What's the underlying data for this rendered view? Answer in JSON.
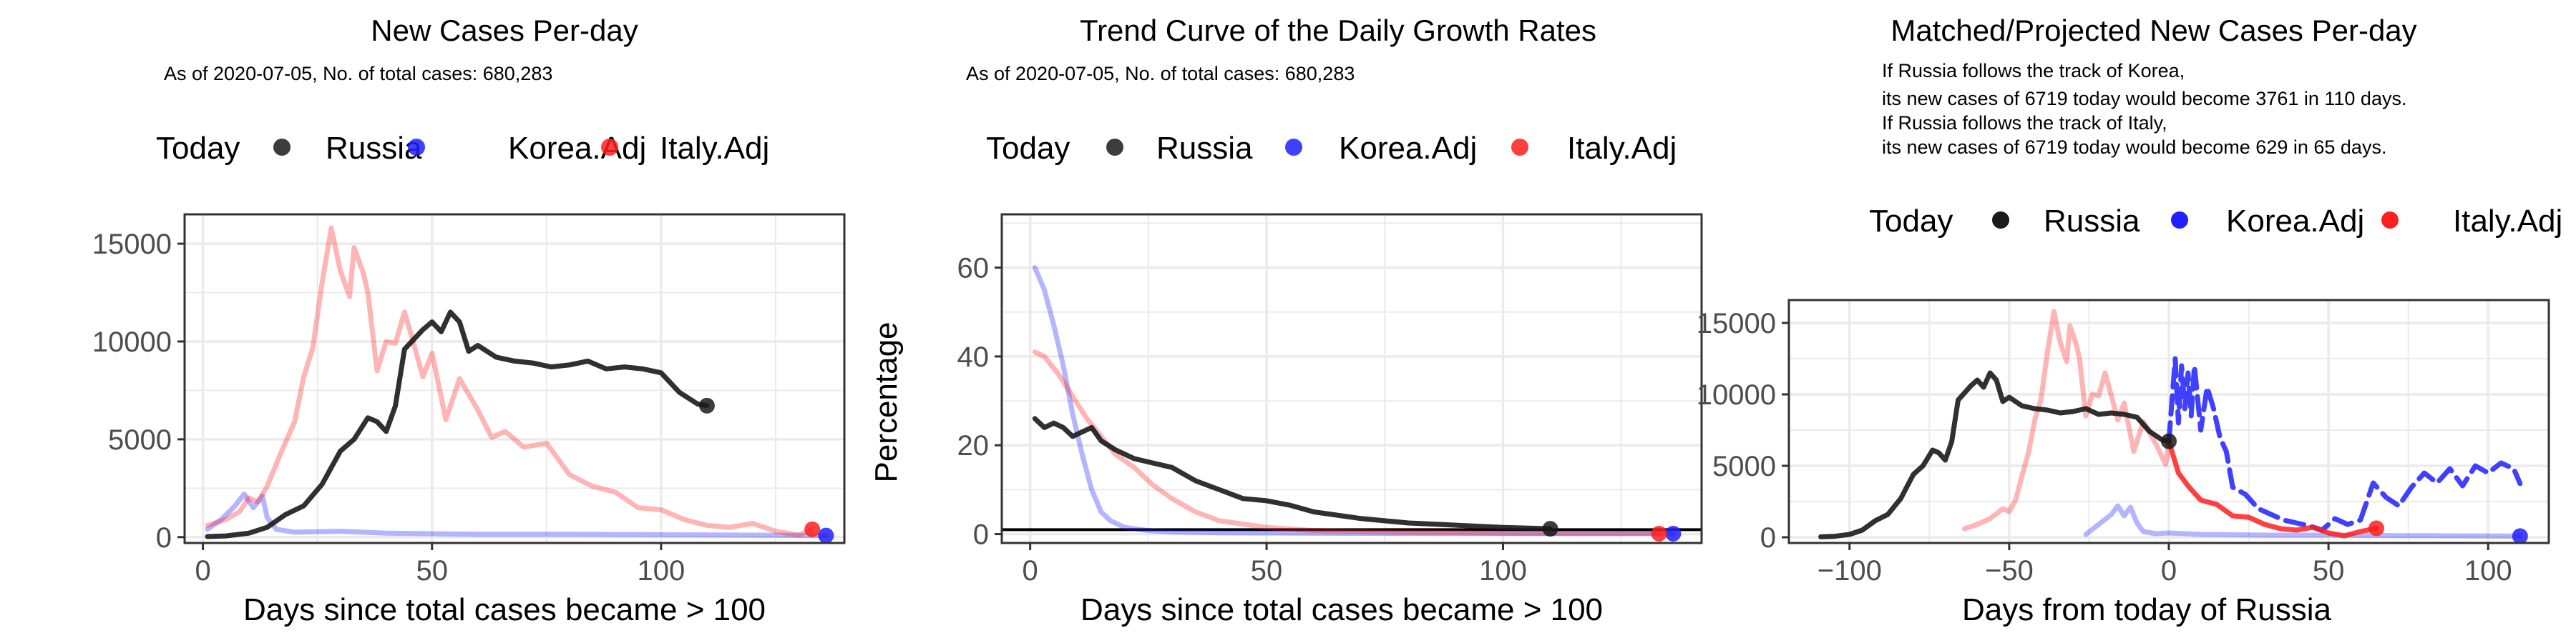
{
  "colors": {
    "russia": "#1a1a1a",
    "korea": "#1f1fff",
    "italy": "#ff1f1f",
    "korea_faded": "#b3b3ff",
    "italy_faded": "#ffb3b3",
    "grid": "#ebebeb",
    "panel_border": "#333333"
  },
  "legend": {
    "today_label": "Today",
    "russia": "Russia",
    "korea": "Korea.Adj",
    "italy": "Italy.Adj"
  },
  "chart_data": [
    {
      "type": "line",
      "title": "New Cases Per-day",
      "subtitle": "As of 2020-07-05, No. of total cases: 680,283",
      "xlabel": "Days since total cases became > 100",
      "ylabel": "",
      "xlim": [
        -4,
        140
      ],
      "ylim": [
        -300,
        16500
      ],
      "xticks": [
        0,
        50,
        100
      ],
      "yticks": [
        0,
        5000,
        10000,
        15000
      ],
      "ytick_labels": [
        "0",
        "5000",
        "10000",
        "15000"
      ],
      "series": [
        {
          "name": "Russia",
          "x": [
            1,
            5,
            10,
            14,
            18,
            22,
            26,
            30,
            33,
            36,
            38,
            40,
            42,
            44,
            46,
            48,
            50,
            52,
            54,
            56,
            58,
            60,
            64,
            68,
            72,
            76,
            80,
            84,
            88,
            92,
            96,
            100,
            104,
            108,
            110
          ],
          "y": [
            30,
            60,
            200,
            500,
            1150,
            1600,
            2700,
            4400,
            5000,
            6100,
            5900,
            5400,
            6700,
            9600,
            10100,
            10600,
            11000,
            10500,
            11500,
            11000,
            9500,
            9800,
            9200,
            9000,
            8900,
            8700,
            8800,
            9000,
            8600,
            8700,
            8600,
            8400,
            7400,
            6800,
            6719
          ]
        },
        {
          "name": "Korea.Adj",
          "x": [
            1,
            4,
            7,
            9,
            11,
            13,
            14,
            16,
            20,
            30,
            40,
            60,
            80,
            100,
            120,
            136
          ],
          "y": [
            400,
            900,
            1600,
            2200,
            1500,
            2100,
            1000,
            400,
            250,
            300,
            200,
            150,
            150,
            120,
            100,
            80
          ]
        },
        {
          "name": "Italy.Adj",
          "x": [
            1,
            5,
            8,
            10,
            12,
            14,
            17,
            20,
            22,
            24,
            26,
            28,
            30,
            32,
            33,
            35,
            36,
            38,
            40,
            42,
            44,
            46,
            48,
            50,
            53,
            56,
            60,
            63,
            66,
            70,
            75,
            80,
            85,
            90,
            95,
            100,
            105,
            110,
            115,
            120,
            125,
            130,
            133
          ],
          "y": [
            600,
            900,
            1300,
            2000,
            1800,
            2600,
            4300,
            5900,
            8200,
            9700,
            13000,
            15800,
            13600,
            12300,
            14800,
            13500,
            12500,
            8500,
            10000,
            9900,
            11500,
            9900,
            8200,
            9400,
            6000,
            8100,
            6500,
            5100,
            5400,
            4600,
            4800,
            3200,
            2600,
            2300,
            1500,
            1400,
            900,
            600,
            500,
            700,
            300,
            100,
            400
          ]
        }
      ],
      "today_points": [
        {
          "name": "Russia",
          "x": 110,
          "y": 6719
        },
        {
          "name": "Korea.Adj",
          "x": 136,
          "y": 80
        },
        {
          "name": "Italy.Adj",
          "x": 133,
          "y": 400
        }
      ]
    },
    {
      "type": "line",
      "title": "Trend Curve of the Daily Growth Rates",
      "subtitle": "As of 2020-07-05, No. of total cases: 680,283",
      "xlabel": "Days since total cases became > 100",
      "ylabel": "Percentage",
      "xlim": [
        -6,
        142
      ],
      "ylim": [
        -2,
        72
      ],
      "xticks": [
        0,
        50,
        100
      ],
      "yticks": [
        0,
        20,
        40,
        60
      ],
      "ytick_labels": [
        "0",
        "20",
        "40",
        "60"
      ],
      "hline": 1,
      "series": [
        {
          "name": "Russia",
          "x": [
            1,
            3,
            5,
            7,
            9,
            11,
            13,
            15,
            18,
            22,
            26,
            30,
            35,
            40,
            45,
            50,
            55,
            60,
            70,
            80,
            90,
            100,
            110
          ],
          "y": [
            26,
            24,
            25,
            24,
            22,
            23,
            24,
            21,
            19,
            17,
            16,
            15,
            12,
            10,
            8,
            7.5,
            6.5,
            5,
            3.5,
            2.5,
            2,
            1.5,
            1.2
          ]
        },
        {
          "name": "Korea.Adj",
          "x": [
            1,
            3,
            5,
            7,
            9,
            11,
            13,
            15,
            17,
            20,
            25,
            30,
            40,
            60,
            100,
            136
          ],
          "y": [
            60,
            55,
            47,
            38,
            27,
            18,
            10,
            5,
            3,
            1.5,
            0.8,
            0.5,
            0.3,
            0.2,
            0.1,
            0.1
          ]
        },
        {
          "name": "Italy.Adj",
          "x": [
            1,
            3,
            6,
            9,
            12,
            15,
            18,
            22,
            26,
            30,
            35,
            40,
            50,
            60,
            80,
            100,
            120,
            133
          ],
          "y": [
            41,
            40,
            36,
            31,
            26,
            22,
            18,
            15,
            11,
            8,
            5,
            3,
            1.5,
            0.8,
            0.4,
            0.2,
            0.1,
            0.1
          ]
        }
      ],
      "today_points": [
        {
          "name": "Russia",
          "x": 110,
          "y": 1.2
        },
        {
          "name": "Korea.Adj",
          "x": 136,
          "y": 0.1
        },
        {
          "name": "Italy.Adj",
          "x": 133,
          "y": 0.1
        }
      ]
    },
    {
      "type": "line",
      "title": "Matched/Projected New Cases Per-day",
      "notes": [
        "If Russia follows the track of Korea,",
        "its new cases of 6719 today would become 3761 in 110 days.",
        "If Russia follows the track of Italy,",
        "its new cases of 6719 today would become 629 in 65 days."
      ],
      "xlabel": "Days from today of Russia",
      "ylabel": "",
      "xlim": [
        -119,
        119
      ],
      "ylim": [
        -400,
        16600
      ],
      "xticks": [
        -100,
        -50,
        0,
        50,
        100
      ],
      "yticks": [
        0,
        5000,
        10000,
        15000
      ],
      "ytick_labels": [
        "0",
        "5000",
        "10000",
        "15000"
      ],
      "series": [
        {
          "name": "Russia",
          "x": [
            -109,
            -105,
            -100,
            -96,
            -92,
            -88,
            -84,
            -80,
            -77,
            -74,
            -72,
            -70,
            -68,
            -66,
            -64,
            -62,
            -60,
            -58,
            -56,
            -54,
            -52,
            -50,
            -46,
            -42,
            -38,
            -34,
            -30,
            -26,
            -22,
            -18,
            -14,
            -10,
            -6,
            -2,
            0
          ],
          "y": [
            30,
            60,
            200,
            500,
            1150,
            1600,
            2700,
            4400,
            5000,
            6100,
            5900,
            5400,
            6700,
            9600,
            10100,
            10600,
            11000,
            10500,
            11500,
            11000,
            9500,
            9800,
            9200,
            9000,
            8900,
            8700,
            8800,
            9000,
            8600,
            8700,
            8600,
            8400,
            7400,
            6800,
            6719
          ]
        },
        {
          "name": "Korea.Adj (matched)",
          "x": [
            -26,
            -22,
            -18,
            -16,
            -14,
            -12,
            -10,
            -8,
            -4,
            0,
            10,
            30,
            50,
            70,
            90,
            110
          ],
          "y": [
            200,
            900,
            1600,
            2200,
            1500,
            2100,
            1000,
            400,
            250,
            300,
            200,
            150,
            150,
            120,
            100,
            80
          ]
        },
        {
          "name": "Korea.Adj (projected)",
          "x": [
            0,
            2,
            3,
            4,
            5,
            6,
            7,
            8,
            10,
            12,
            14,
            16,
            18,
            20,
            24,
            28,
            32,
            36,
            40,
            44,
            48,
            52,
            56,
            60,
            64,
            68,
            72,
            76,
            80,
            84,
            88,
            92,
            96,
            100,
            104,
            108,
            110
          ],
          "y": [
            6719,
            12500,
            8000,
            12000,
            9000,
            11500,
            8500,
            12000,
            7500,
            10500,
            9000,
            7000,
            6000,
            3500,
            3000,
            2000,
            1600,
            1200,
            1000,
            800,
            500,
            1300,
            900,
            1200,
            3800,
            2800,
            2200,
            3500,
            4500,
            3800,
            4800,
            3600,
            5000,
            4500,
            5200,
            4800,
            3761
          ]
        },
        {
          "name": "Italy.Adj (matched)",
          "x": [
            -64,
            -60,
            -56,
            -52,
            -50,
            -48,
            -46,
            -44,
            -42,
            -40,
            -38,
            -36,
            -34,
            -32,
            -31,
            -29,
            -28,
            -26,
            -24,
            -22,
            -20,
            -18,
            -16,
            -14,
            -11,
            -8,
            -4,
            -1,
            0
          ],
          "y": [
            600,
            900,
            1300,
            2000,
            1800,
            2600,
            4300,
            5900,
            8200,
            9700,
            13000,
            15800,
            13600,
            12300,
            14800,
            13500,
            12500,
            8500,
            10000,
            9900,
            11500,
            9900,
            8200,
            9400,
            6000,
            8100,
            6500,
            5100,
            6719
          ]
        },
        {
          "name": "Italy.Adj (projected)",
          "x": [
            0,
            3,
            6,
            10,
            15,
            20,
            25,
            30,
            35,
            40,
            45,
            50,
            55,
            60,
            65
          ],
          "y": [
            6719,
            4500,
            3600,
            2600,
            2300,
            1500,
            1400,
            900,
            600,
            500,
            700,
            300,
            100,
            400,
            629
          ]
        }
      ],
      "today_points": [
        {
          "name": "Russia",
          "x": 0,
          "y": 6719
        },
        {
          "name": "Korea.Adj",
          "x": 110,
          "y": 80
        },
        {
          "name": "Italy.Adj",
          "x": 65,
          "y": 629
        }
      ]
    }
  ]
}
